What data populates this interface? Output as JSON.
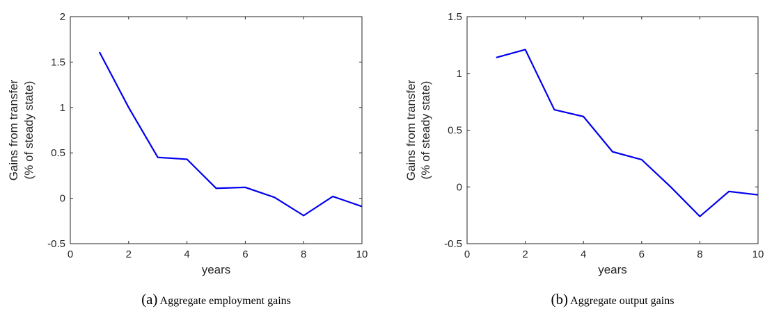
{
  "chart_data": [
    {
      "type": "line",
      "caption_letter": "(a)",
      "caption_text": "Aggregate employment gains",
      "xlabel": "years",
      "ylabel_line1": "Gains from transfer",
      "ylabel_line2": "(% of steady state)",
      "xlim": [
        0,
        10
      ],
      "ylim": [
        -0.5,
        2
      ],
      "x_ticks": [
        0,
        2,
        4,
        6,
        8,
        10
      ],
      "x_tick_labels": [
        "0",
        "2",
        "4",
        "6",
        "8",
        "10"
      ],
      "y_ticks": [
        -0.5,
        0,
        0.5,
        1,
        1.5,
        2
      ],
      "y_tick_labels": [
        "-0.5",
        "0",
        "0.5",
        "1",
        "1.5",
        "2"
      ],
      "grid": false,
      "series": [
        {
          "color": "#0000ee",
          "x": [
            1,
            2,
            3,
            4,
            5,
            6,
            7,
            8,
            9,
            10
          ],
          "y": [
            1.61,
            1.0,
            0.45,
            0.43,
            0.11,
            0.12,
            0.01,
            -0.19,
            0.02,
            -0.09
          ]
        }
      ]
    },
    {
      "type": "line",
      "caption_letter": "(b)",
      "caption_text": "Aggregate output gains",
      "xlabel": "years",
      "ylabel_line1": "Gains from transfer",
      "ylabel_line2": "(% of steady state)",
      "xlim": [
        0,
        10
      ],
      "ylim": [
        -0.5,
        1.5
      ],
      "x_ticks": [
        0,
        2,
        4,
        6,
        8,
        10
      ],
      "x_tick_labels": [
        "0",
        "2",
        "4",
        "6",
        "8",
        "10"
      ],
      "y_ticks": [
        -0.5,
        0,
        0.5,
        1,
        1.5
      ],
      "y_tick_labels": [
        "-0.5",
        "0",
        "0.5",
        "1",
        "1.5"
      ],
      "grid": false,
      "series": [
        {
          "color": "#0000ee",
          "x": [
            1,
            2,
            3,
            4,
            5,
            6,
            7,
            8,
            9,
            10
          ],
          "y": [
            1.14,
            1.21,
            0.68,
            0.62,
            0.31,
            0.24,
            0.0,
            -0.26,
            -0.04,
            -0.07
          ]
        }
      ]
    }
  ]
}
